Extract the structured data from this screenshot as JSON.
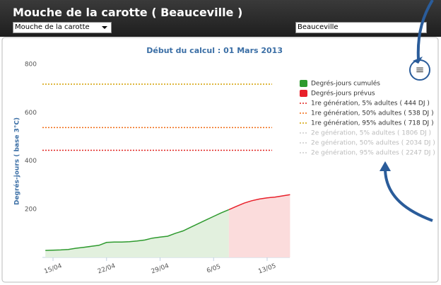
{
  "header": {
    "title": "Mouche de la carotte ( Beauceville )",
    "insect_select": "Mouche de la carotte",
    "location_select": "Beauceville"
  },
  "chart_data": {
    "type": "line",
    "subtitle": "Début du calcul : 01 Mars 2013",
    "y_label": "Degrés-jours ( base 3°C)",
    "categories": [
      null,
      "15/04",
      null,
      null,
      null,
      null,
      null,
      null,
      "22/04",
      null,
      null,
      null,
      null,
      null,
      null,
      "29/04",
      null,
      null,
      null,
      null,
      null,
      null,
      "6/05",
      null,
      null,
      null,
      null,
      null,
      null,
      "13/05",
      null,
      null,
      null
    ],
    "series": [
      {
        "name": "Degrés-jours cumulés",
        "color": "#2e9a2e",
        "fill": "#e2f0de",
        "values": [
          29,
          30,
          31,
          33,
          38,
          42,
          46,
          50,
          62,
          64,
          64,
          65,
          68,
          72,
          80,
          84,
          88,
          100,
          110,
          125,
          140,
          155,
          170,
          185,
          198,
          null,
          null,
          null,
          null,
          null,
          null,
          null,
          null
        ]
      },
      {
        "name": "Degrés-jours prévus",
        "color": "#e8202a",
        "fill": "#fbdcdc",
        "values": [
          null,
          null,
          null,
          null,
          null,
          null,
          null,
          null,
          null,
          null,
          null,
          null,
          null,
          null,
          null,
          null,
          null,
          null,
          null,
          null,
          null,
          null,
          null,
          null,
          198,
          212,
          225,
          235,
          242,
          247,
          250,
          255,
          260
        ]
      }
    ],
    "thresholds": [
      {
        "name": "1re génération, 5% adultes ( 444 DJ )",
        "color": "#e0201c",
        "value": 444
      },
      {
        "name": "1re génération, 50% adultes ( 538 DJ )",
        "color": "#f06a10",
        "value": 538
      },
      {
        "name": "1re génération, 95% adultes ( 718 DJ )",
        "color": "#d4a000",
        "value": 718
      },
      {
        "name": "2e génération, 5% adultes ( 1806 DJ )",
        "color": "#cccccc",
        "value": 1806
      },
      {
        "name": "2e génération, 50% adultes ( 2034 DJ )",
        "color": "#cccccc",
        "value": 2034
      },
      {
        "name": "2e génération, 95% adultes ( 2247 DJ )",
        "color": "#cccccc",
        "value": 2247
      }
    ],
    "ylim": [
      0,
      800
    ],
    "yticks": [
      200,
      400,
      600,
      800
    ],
    "grid": false
  }
}
